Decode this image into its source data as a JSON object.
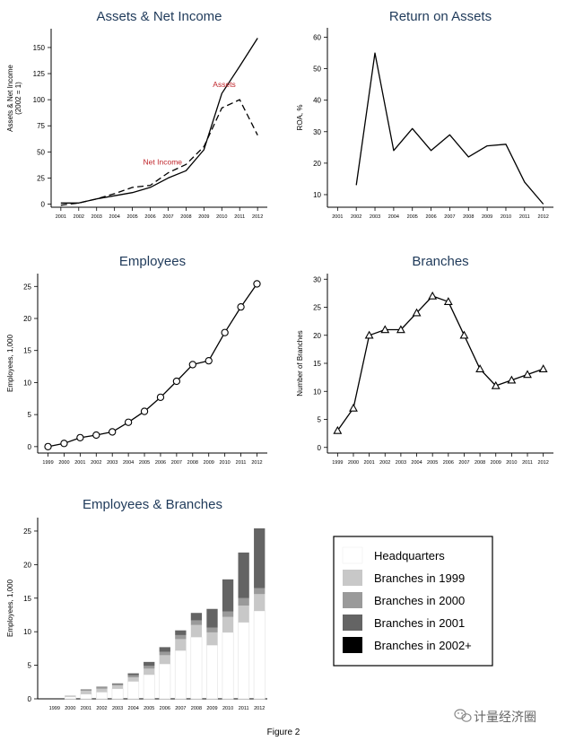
{
  "caption": "Figure 2",
  "watermark": "计量经济圈",
  "colors": {
    "title": "#1f3a5a",
    "annotation": "#c0272d",
    "line": "#000000"
  },
  "legend": {
    "entries": [
      {
        "label": "Headquarters",
        "color": "#ffffff"
      },
      {
        "label": "Branches in 1999",
        "color": "#c8c8c8"
      },
      {
        "label": "Branches in 2000",
        "color": "#9a9a9a"
      },
      {
        "label": "Branches in 2001",
        "color": "#646464"
      },
      {
        "label": "Branches in 2002+",
        "color": "#000000"
      }
    ]
  },
  "chart_data": [
    {
      "id": "assets",
      "type": "line",
      "title": "Assets & Net Income",
      "ylabel": "Assets & Net Income",
      "ylabel2": "(2002 = 1)",
      "x": [
        2001,
        2002,
        2003,
        2004,
        2005,
        2006,
        2007,
        2008,
        2009,
        2010,
        2011,
        2012
      ],
      "ylim": [
        -3,
        168
      ],
      "yticks": [
        0,
        25,
        50,
        75,
        100,
        125,
        150
      ],
      "series": [
        {
          "name": "Assets",
          "style": "solid",
          "values": [
            1,
            1,
            5,
            8,
            11,
            16,
            25,
            32,
            52,
            106,
            132,
            159
          ]
        },
        {
          "name": "Net Income",
          "style": "dashed",
          "values": [
            -1,
            1,
            5,
            10,
            16,
            18,
            30,
            38,
            55,
            92,
            100,
            66
          ]
        }
      ],
      "annotations": [
        {
          "text": "Assets",
          "x": 2009.5,
          "y": 112
        },
        {
          "text": "Net Income",
          "x": 2005.6,
          "y": 38
        }
      ]
    },
    {
      "id": "roa",
      "type": "line",
      "title": "Return on Assets",
      "ylabel": "ROA, %",
      "x": [
        2001,
        2002,
        2003,
        2004,
        2005,
        2006,
        2007,
        2008,
        2009,
        2010,
        2011,
        2012
      ],
      "ylim": [
        6,
        63
      ],
      "yticks": [
        10,
        20,
        30,
        40,
        50,
        60
      ],
      "series": [
        {
          "name": "ROA",
          "style": "solid",
          "x": [
            2002,
            2003,
            2004,
            2005,
            2006,
            2007,
            2008,
            2009,
            2010,
            2011,
            2012
          ],
          "values": [
            13,
            55,
            24,
            31,
            24,
            29,
            22,
            25.5,
            26,
            14,
            7
          ]
        }
      ]
    },
    {
      "id": "employees",
      "type": "line",
      "title": "Employees",
      "ylabel": "Employees, 1,000",
      "x": [
        1999,
        2000,
        2001,
        2002,
        2003,
        2004,
        2005,
        2006,
        2007,
        2008,
        2009,
        2010,
        2011,
        2012
      ],
      "ylim": [
        -1,
        27
      ],
      "yticks": [
        0,
        5,
        10,
        15,
        20,
        25
      ],
      "series": [
        {
          "name": "Employees",
          "style": "solid",
          "marker": "circle",
          "values": [
            0,
            0.5,
            1.4,
            1.8,
            2.3,
            3.8,
            5.5,
            7.7,
            10.2,
            12.8,
            13.4,
            17.8,
            21.8,
            25.4
          ]
        }
      ]
    },
    {
      "id": "branches",
      "type": "line",
      "title": "Branches",
      "ylabel": "Number of Branches",
      "x": [
        1999,
        2000,
        2001,
        2002,
        2003,
        2004,
        2005,
        2006,
        2007,
        2008,
        2009,
        2010,
        2011,
        2012
      ],
      "ylim": [
        -1,
        31
      ],
      "yticks": [
        0,
        5,
        10,
        15,
        20,
        25,
        30
      ],
      "series": [
        {
          "name": "Branches",
          "style": "solid",
          "marker": "triangle",
          "values": [
            3,
            7,
            20,
            21,
            21,
            24,
            27,
            26,
            20,
            14,
            11,
            12,
            13,
            14
          ]
        }
      ]
    },
    {
      "id": "stacked",
      "type": "bar",
      "title": "Employees & Branches",
      "ylabel": "Employees, 1,000",
      "categories": [
        "1999",
        "2000",
        "2001",
        "2002",
        "2003",
        "2004",
        "2005",
        "2006",
        "2007",
        "2008",
        "2009",
        "2010",
        "2011",
        "2012"
      ],
      "ylim": [
        0,
        27
      ],
      "yticks": [
        0,
        5,
        10,
        15,
        20,
        25
      ],
      "series": [
        {
          "name": "Headquarters",
          "values": [
            0,
            0.3,
            0.7,
            1.0,
            1.5,
            2.6,
            3.6,
            5.2,
            7.2,
            9.2,
            8.0,
            9.9,
            11.4,
            13.1
          ]
        },
        {
          "name": "Branches in 1999",
          "values": [
            0,
            0.2,
            0.5,
            0.5,
            0.5,
            0.6,
            0.9,
            1.3,
            1.7,
            1.8,
            1.9,
            2.3,
            2.5,
            2.5
          ]
        },
        {
          "name": "Branches in 2000",
          "values": [
            0,
            0,
            0.1,
            0.2,
            0.2,
            0.3,
            0.4,
            0.5,
            0.6,
            0.7,
            0.7,
            0.8,
            1.1,
            0.9
          ]
        },
        {
          "name": "Branches in 2001",
          "values": [
            0,
            0,
            0.1,
            0.1,
            0.1,
            0.3,
            0.6,
            0.7,
            0.7,
            1.1,
            2.8,
            4.8,
            6.8,
            8.9
          ]
        },
        {
          "name": "Branches in 2002+",
          "values": [
            0,
            0,
            0,
            0,
            0,
            0,
            0,
            0,
            0,
            0,
            0,
            0,
            0,
            0
          ]
        }
      ]
    }
  ]
}
